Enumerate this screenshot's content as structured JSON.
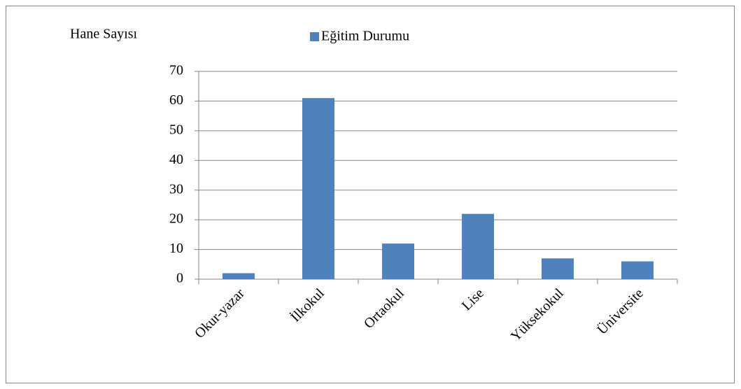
{
  "chart_data": {
    "type": "bar",
    "ylabel": "Hane Sayısı",
    "categories": [
      "Okur-yazar",
      "İlkokul",
      "Ortaokul",
      "Lise",
      "Yüksekokul",
      "Üniversite"
    ],
    "series": [
      {
        "name": "Eğitim Durumu",
        "color": "#4f81bd",
        "values": [
          2,
          61,
          12,
          22,
          7,
          6
        ]
      }
    ],
    "ylim": [
      0,
      70
    ],
    "yticks": [
      0,
      10,
      20,
      30,
      40,
      50,
      60,
      70
    ],
    "grid": true,
    "legend": "top"
  }
}
